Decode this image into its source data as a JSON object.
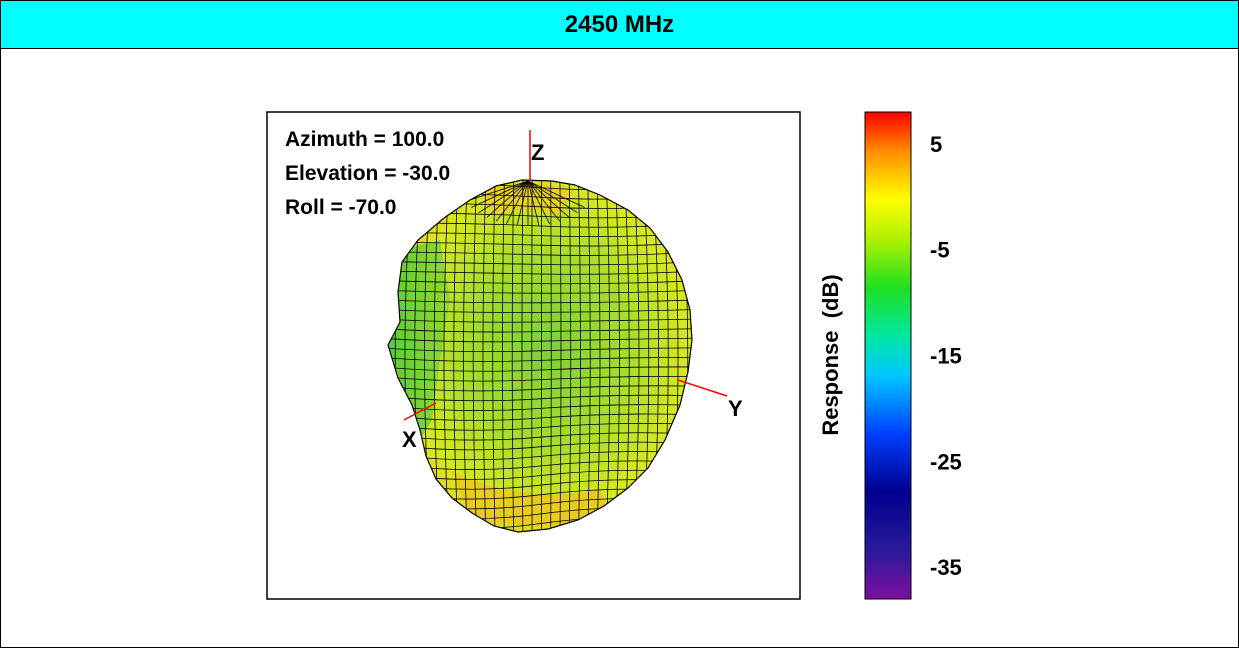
{
  "title": "2450 MHz",
  "view": {
    "azimuth_label": "Azimuth = 100.0",
    "elevation_label": "Elevation = -30.0",
    "roll_label": "Roll = -70.0"
  },
  "axes": {
    "x": "X",
    "y": "Y",
    "z": "Z"
  },
  "colors": {
    "title_bg": "#00ffff",
    "mesh_line": "#000000",
    "axis_line": "#ff0000"
  },
  "chart_data": {
    "type": "3d-surface",
    "title": "2450 MHz",
    "view_angles": {
      "azimuth": 100.0,
      "elevation": -30.0,
      "roll": -70.0
    },
    "colorbar": {
      "label": "Response  (dB)",
      "range": [
        -38,
        8
      ],
      "ticks": [
        5,
        -5,
        -15,
        -25,
        -35
      ],
      "tick_labels": [
        "5",
        "-5",
        "-15",
        "-25",
        "-35"
      ],
      "colormap": "jet"
    },
    "surface_value_range_db": [
      -10,
      3
    ]
  }
}
